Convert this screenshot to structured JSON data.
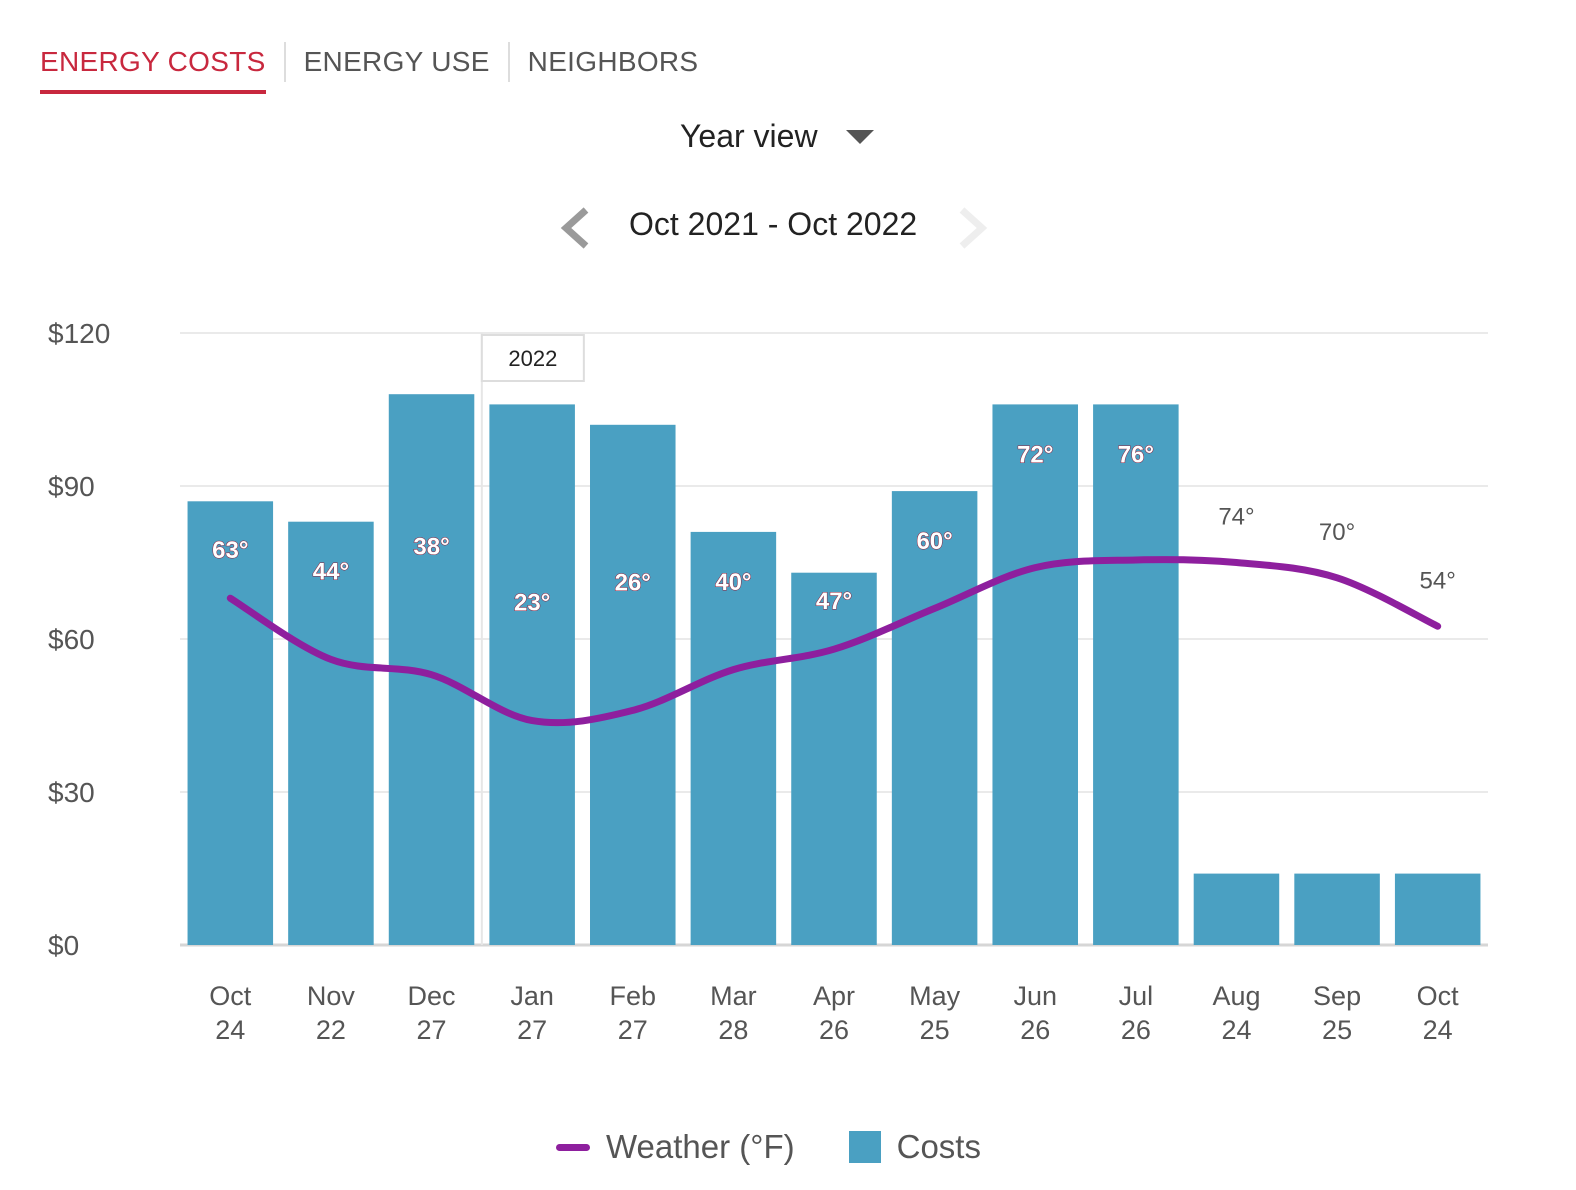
{
  "tabs": [
    {
      "label": "ENERGY COSTS",
      "active": true
    },
    {
      "label": "ENERGY USE",
      "active": false
    },
    {
      "label": "NEIGHBORS",
      "active": false
    }
  ],
  "view_select": {
    "label": "Year view"
  },
  "date_range": {
    "label": "Oct 2021 - Oct 2022"
  },
  "colors": {
    "accent": "#c8283e",
    "bar": "#4aa0c2",
    "line": "#8e1f9e",
    "grid": "#e3e3e3"
  },
  "icons": {
    "prev": "chevron-left-icon",
    "next": "chevron-right-icon",
    "dropdown": "caret-down-icon"
  },
  "chart_data": {
    "type": "bar",
    "categories": [
      "Oct",
      "Nov",
      "Dec",
      "Jan",
      "Feb",
      "Mar",
      "Apr",
      "May",
      "Jun",
      "Jul",
      "Aug",
      "Sep",
      "Oct"
    ],
    "category_sublabels": [
      "24",
      "22",
      "27",
      "27",
      "27",
      "28",
      "26",
      "25",
      "26",
      "26",
      "24",
      "25",
      "24"
    ],
    "year_marker": {
      "category_index": 3,
      "label": "2022"
    },
    "yticks": [
      "$0",
      "$30",
      "$60",
      "$90",
      "$120"
    ],
    "ylim": [
      0,
      120
    ],
    "grid": true,
    "series": [
      {
        "name": "Costs",
        "type": "bar",
        "values": [
          87,
          83,
          108,
          106,
          102,
          81,
          73,
          89,
          106,
          106,
          14,
          14,
          14
        ]
      },
      {
        "name": "Weather (°F)",
        "type": "line",
        "values": [
          63,
          44,
          38,
          23,
          26,
          40,
          47,
          60,
          72,
          76,
          74,
          70,
          54
        ],
        "labels": [
          "63°",
          "44°",
          "38°",
          "23°",
          "26°",
          "40°",
          "47°",
          "60°",
          "72°",
          "76°",
          "74°",
          "70°",
          "54°"
        ],
        "line_positions_cost_units": [
          68,
          56,
          53,
          44,
          46,
          54,
          58,
          66,
          74,
          75.5,
          75,
          72,
          62.5
        ]
      }
    ],
    "legend_position": "bottom"
  }
}
